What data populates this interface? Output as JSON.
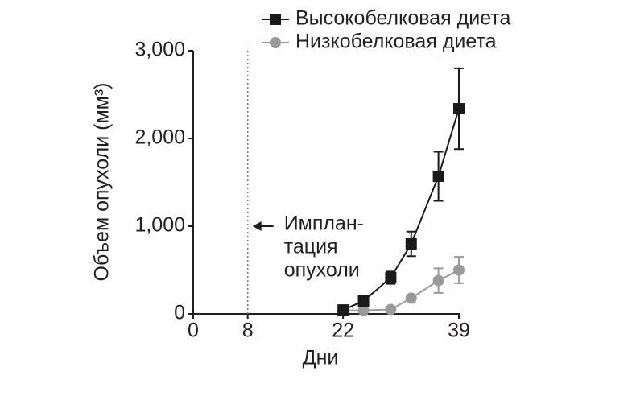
{
  "chart_data": {
    "type": "line",
    "ylabel": "Объем опухоли (мм³)",
    "xlabel": "Дни",
    "x": [
      22,
      25,
      29,
      32,
      36,
      39
    ],
    "series": [
      {
        "name": "Высокобелковая диета",
        "color": "#1a1a1a",
        "marker": "square",
        "values": [
          45,
          147,
          413,
          798,
          1569,
          2339
        ],
        "errors": [
          null,
          null,
          70,
          140,
          280,
          460
        ]
      },
      {
        "name": "Низкобелковая диета",
        "color": "#9a9a9a",
        "marker": "circle",
        "values": [
          40,
          40,
          50,
          180,
          380,
          500
        ],
        "errors": [
          null,
          null,
          null,
          null,
          140,
          150
        ]
      }
    ],
    "xlim": [
      0,
      39
    ],
    "xticks": [
      0,
      8,
      22,
      39
    ],
    "ylim": [
      0,
      3000
    ],
    "yticks": [
      {
        "value": 0,
        "label": "0"
      },
      {
        "value": 1000,
        "label": "1,000"
      },
      {
        "value": 2000,
        "label": "2,000"
      },
      {
        "value": 3000,
        "label": "3,000"
      }
    ],
    "vline": 8,
    "annotation": [
      "Имплан-",
      "тация",
      "опухоли"
    ],
    "legend": "top",
    "grid": false
  }
}
